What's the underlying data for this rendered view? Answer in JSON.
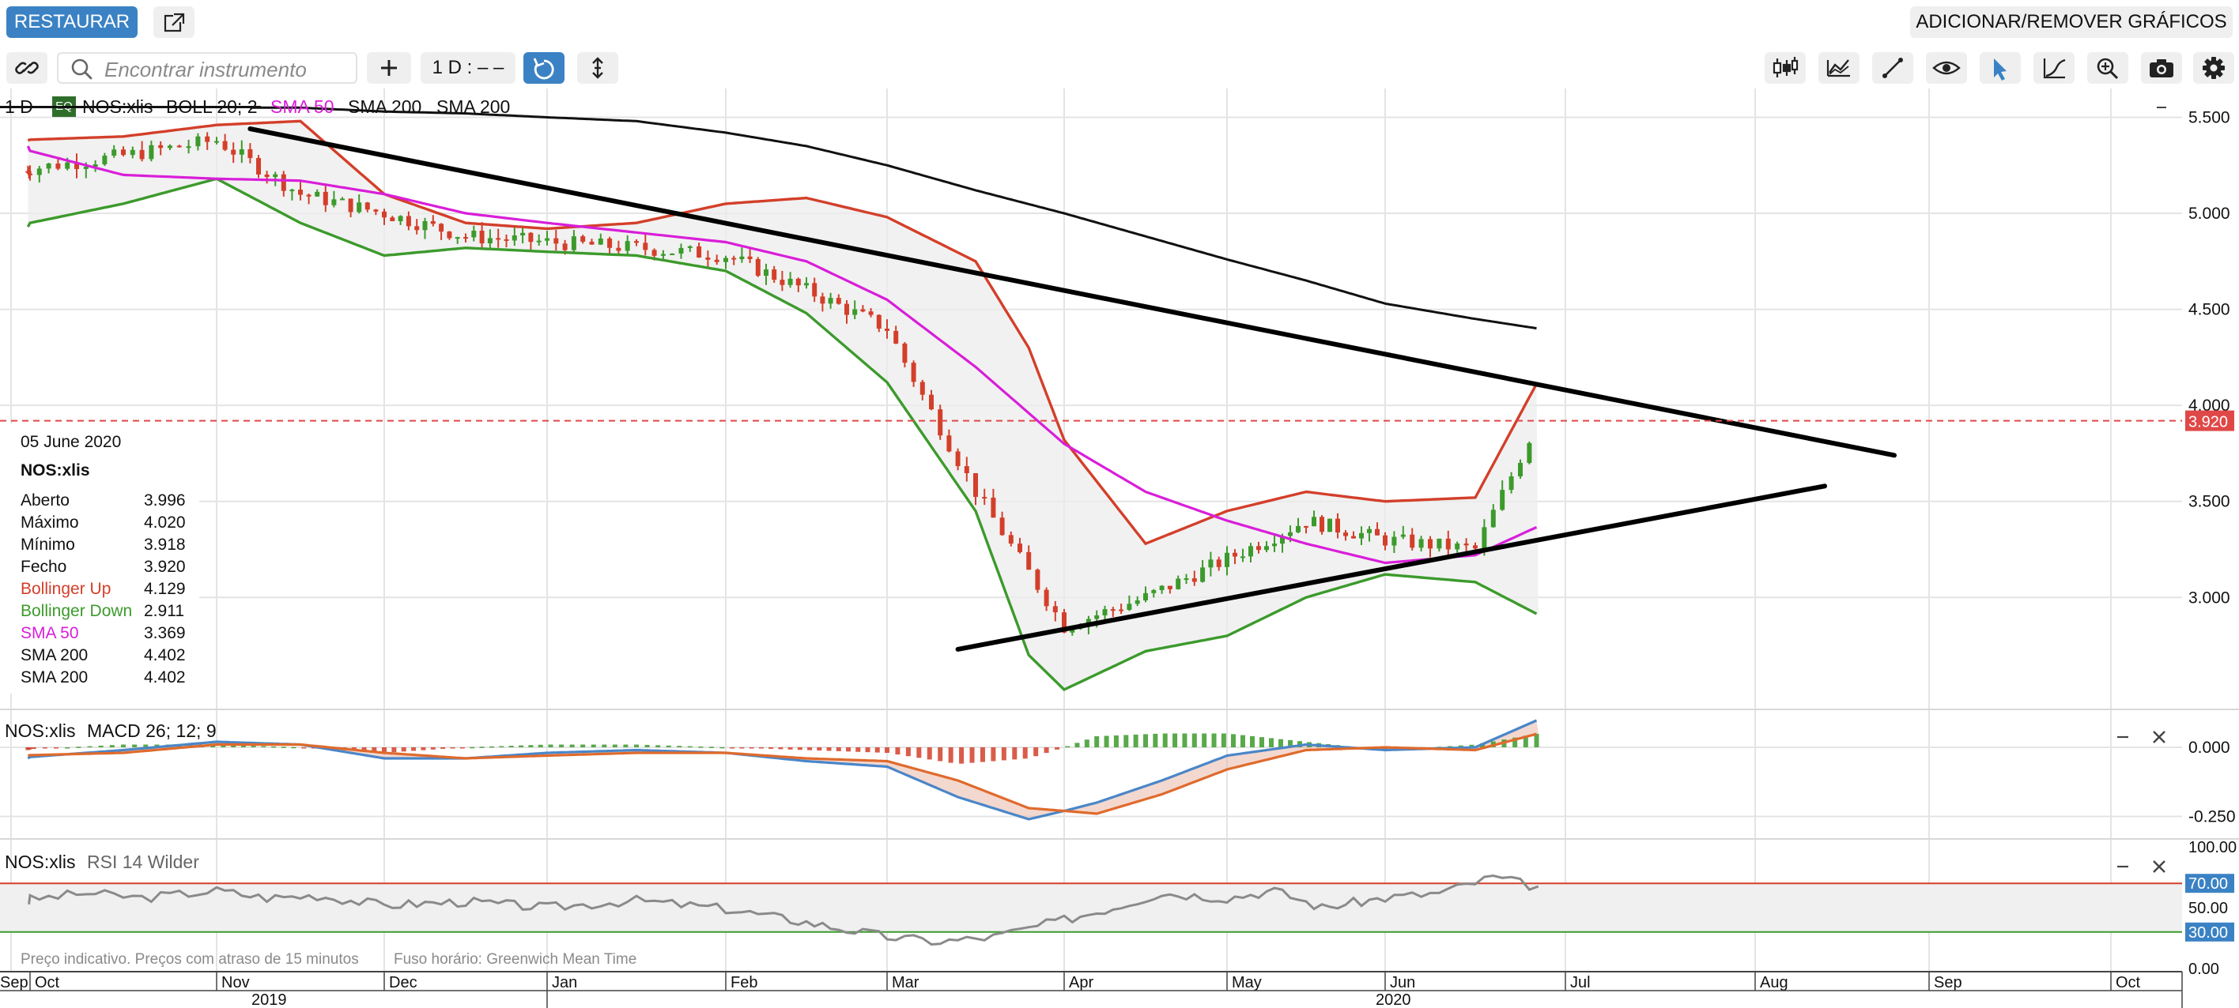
{
  "toolbar_top": {
    "restore_label": "RESTAURAR",
    "add_remove_label": "ADICIONAR/REMOVER GRÁFICOS"
  },
  "toolbar": {
    "search_placeholder": "Encontrar instrumento",
    "interval_label": "1 D : – –",
    "icons": [
      "link-icon",
      "search-icon",
      "plus-icon",
      "reset-icon",
      "vertical-arrows-icon",
      "candlestick-icon",
      "chart-type-icon",
      "drawing-line-icon",
      "eye-icon",
      "pointer-icon",
      "curve-icon",
      "zoom-icon",
      "camera-icon",
      "gear-icon"
    ]
  },
  "legend": {
    "interval": "1 D",
    "eq_badge": "EQ",
    "instrument": "NOS:xlis",
    "boll": "BOLL 20; 2",
    "sma50": "SMA 50",
    "sma200a": "SMA 200",
    "sma200b": "SMA 200"
  },
  "info_panel": {
    "date": "05 June 2020",
    "instrument": "NOS:xlis",
    "rows": [
      {
        "label": "Aberto",
        "value": "3.996",
        "color": "#111111"
      },
      {
        "label": "Máximo",
        "value": "4.020",
        "color": "#111111"
      },
      {
        "label": "Mínimo",
        "value": "3.918",
        "color": "#111111"
      },
      {
        "label": "Fecho",
        "value": "3.920",
        "color": "#111111"
      },
      {
        "label": "Bollinger Up",
        "value": "4.129",
        "color": "#d33f2a"
      },
      {
        "label": "Bollinger Down",
        "value": "2.911",
        "color": "#3c9a2c"
      },
      {
        "label": "SMA 50",
        "value": "3.369",
        "color": "#d91ed9"
      },
      {
        "label": "SMA 200",
        "value": "4.402",
        "color": "#111111"
      },
      {
        "label": "SMA 200",
        "value": "4.402",
        "color": "#111111"
      }
    ]
  },
  "macd_label": {
    "instrument": "NOS:xlis",
    "name": "MACD 26; 12; 9"
  },
  "rsi_label": {
    "instrument": "NOS:xlis",
    "name": "RSI 14 Wilder"
  },
  "footer": {
    "disclaimer": "Preço indicativo. Preços com atraso de 15 minutos",
    "timezone": "Fuso horário: Greenwich Mean Time"
  },
  "colors": {
    "up": "#3c9a2c",
    "down": "#d33f2a",
    "sma50": "#d91ed9",
    "sma200": "#111111",
    "accent": "#3b82c4",
    "macd": "#4a86c8",
    "signal": "#e06a2c"
  },
  "chart_data": [
    {
      "type": "line",
      "title": "NOS:xlis",
      "last_price_label": "3.920",
      "price_axis_ticks": [
        "5.500",
        "5.000",
        "4.500",
        "4.000",
        "3.500",
        "3.000"
      ],
      "price_axis_values": [
        5.5,
        5.0,
        4.5,
        4.0,
        3.5,
        3.0
      ],
      "ylim": [
        2.45,
        5.65
      ],
      "x_month_labels": [
        "Sep",
        "Oct",
        "Nov",
        "Dec",
        "Jan",
        "Feb",
        "Mar",
        "Apr",
        "May",
        "Jun",
        "Jul",
        "Aug",
        "Sep",
        "Oct"
      ],
      "x_year_labels": [
        "2019",
        "2020"
      ],
      "close_series": {
        "months": [
          9.9,
          10.5,
          11.0,
          11.5,
          12.0,
          12.5,
          13.0,
          13.5,
          14.0,
          14.5,
          15.0,
          15.2,
          15.5,
          16.0,
          16.5,
          17.0,
          17.5,
          18.0,
          18.5,
          18.85
        ],
        "values": [
          5.22,
          5.3,
          5.38,
          5.1,
          5.0,
          4.88,
          4.85,
          4.82,
          4.78,
          4.6,
          4.4,
          4.05,
          3.55,
          2.85,
          3.0,
          3.2,
          3.4,
          3.3,
          3.25,
          3.92
        ]
      },
      "bollinger_upper": {
        "months": [
          9.9,
          10.5,
          11.0,
          11.5,
          12.0,
          12.5,
          13.0,
          13.5,
          14.0,
          14.5,
          15.0,
          15.5,
          15.8,
          16.0,
          16.5,
          17.0,
          17.5,
          18.0,
          18.5,
          18.85
        ],
        "values": [
          5.38,
          5.4,
          5.46,
          5.48,
          5.1,
          4.95,
          4.92,
          4.95,
          5.05,
          5.08,
          4.98,
          4.75,
          4.3,
          3.82,
          3.28,
          3.45,
          3.55,
          3.5,
          3.52,
          4.13
        ]
      },
      "bollinger_lower": {
        "months": [
          9.9,
          10.5,
          11.0,
          11.5,
          12.0,
          12.5,
          13.0,
          13.5,
          14.0,
          14.5,
          15.0,
          15.5,
          15.8,
          16.0,
          16.5,
          17.0,
          17.5,
          18.0,
          18.5,
          18.85
        ],
        "values": [
          4.93,
          5.05,
          5.18,
          4.95,
          4.78,
          4.82,
          4.8,
          4.78,
          4.7,
          4.48,
          4.12,
          3.45,
          2.7,
          2.52,
          2.72,
          2.8,
          3.0,
          3.12,
          3.08,
          2.91
        ]
      },
      "sma50": {
        "months": [
          9.9,
          10.5,
          11.0,
          11.5,
          12.0,
          12.5,
          13.0,
          13.5,
          14.0,
          14.5,
          15.0,
          15.5,
          16.0,
          16.5,
          17.0,
          17.5,
          18.0,
          18.5,
          18.85
        ],
        "values": [
          5.35,
          5.2,
          5.18,
          5.17,
          5.1,
          5.0,
          4.95,
          4.9,
          4.85,
          4.75,
          4.55,
          4.2,
          3.8,
          3.55,
          3.4,
          3.28,
          3.18,
          3.22,
          3.37
        ]
      },
      "sma200": {
        "months": [
          11.2,
          11.5,
          12.0,
          12.5,
          13.0,
          13.5,
          14.0,
          14.5,
          15.0,
          15.5,
          16.0,
          16.5,
          17.0,
          17.5,
          18.0,
          18.5,
          18.85
        ],
        "values": [
          5.55,
          5.55,
          5.53,
          5.52,
          5.5,
          5.48,
          5.42,
          5.35,
          5.25,
          5.12,
          5.0,
          4.88,
          4.76,
          4.65,
          4.53,
          4.45,
          4.4
        ]
      },
      "trendlines": [
        {
          "name": "resistance",
          "from": [
            11.2,
            5.44
          ],
          "to": [
            20.8,
            3.74
          ]
        },
        {
          "name": "support",
          "from": [
            15.4,
            2.73
          ],
          "to": [
            20.4,
            3.58
          ]
        }
      ]
    },
    {
      "type": "line",
      "title": "MACD 26; 12; 9",
      "y_ticks": [
        "0.000",
        "-0.250"
      ],
      "y_tick_values": [
        0.0,
        -0.25
      ],
      "ylim": [
        -0.32,
        0.12
      ],
      "macd": {
        "months": [
          9.9,
          10.5,
          11.0,
          11.5,
          12.0,
          12.5,
          13.0,
          13.5,
          14.0,
          14.5,
          15.0,
          15.4,
          15.8,
          16.2,
          16.6,
          17.0,
          17.5,
          18.0,
          18.5,
          18.85
        ],
        "values": [
          -0.04,
          -0.01,
          0.02,
          0.01,
          -0.04,
          -0.04,
          -0.02,
          -0.01,
          -0.02,
          -0.05,
          -0.07,
          -0.18,
          -0.26,
          -0.2,
          -0.12,
          -0.03,
          0.01,
          -0.01,
          0.0,
          0.1
        ]
      },
      "signal": {
        "months": [
          9.9,
          10.5,
          11.0,
          11.5,
          12.0,
          12.5,
          13.0,
          13.5,
          14.0,
          14.5,
          15.0,
          15.4,
          15.8,
          16.2,
          16.6,
          17.0,
          17.5,
          18.0,
          18.5,
          18.85
        ],
        "values": [
          -0.03,
          -0.02,
          0.01,
          0.01,
          -0.02,
          -0.04,
          -0.03,
          -0.02,
          -0.02,
          -0.04,
          -0.05,
          -0.12,
          -0.22,
          -0.24,
          -0.17,
          -0.08,
          -0.01,
          0.0,
          -0.01,
          0.05
        ]
      }
    },
    {
      "type": "line",
      "title": "RSI 14 Wilder",
      "y_ticks": [
        "100.00",
        "70.00",
        "50.00",
        "30.00",
        "0.00"
      ],
      "y_tick_values": [
        100,
        70,
        50,
        30,
        0
      ],
      "ylim": [
        0,
        100
      ],
      "rsi": {
        "months": [
          9.9,
          10.3,
          10.6,
          11.0,
          11.3,
          11.6,
          12.0,
          12.5,
          13.0,
          13.5,
          14.0,
          14.5,
          15.0,
          15.3,
          15.6,
          16.0,
          16.3,
          16.6,
          17.0,
          17.3,
          17.6,
          18.0,
          18.3,
          18.6,
          18.85
        ],
        "values": [
          55,
          62,
          58,
          64,
          58,
          60,
          52,
          55,
          50,
          56,
          49,
          38,
          26,
          22,
          26,
          40,
          50,
          62,
          58,
          64,
          50,
          58,
          62,
          75,
          67
        ]
      }
    }
  ]
}
